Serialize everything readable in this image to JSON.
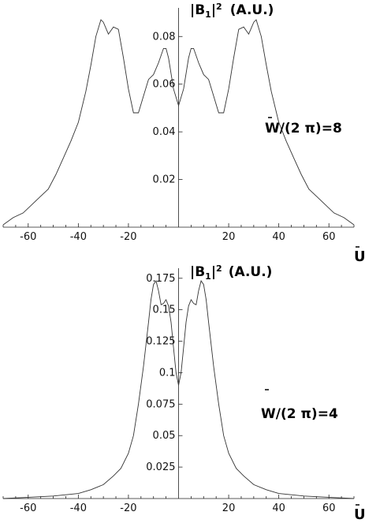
{
  "chart_data": [
    {
      "type": "line",
      "ylabel_main": "|B",
      "ylabel_sub": "1",
      "ylabel_rest": "|",
      "ylabel_sup": "2",
      "ylabel_units": "(A.U.)",
      "xlabel": "U",
      "annotation": "W/(2 π)=8",
      "xlim": [
        -70,
        70
      ],
      "ylim": [
        0,
        0.092
      ],
      "xticks": [
        -60,
        -40,
        -20,
        20,
        40,
        60
      ],
      "yticks": [
        0.02,
        0.04,
        0.06,
        0.08
      ],
      "xtick_labels": [
        "-60",
        "-40",
        "-20",
        "20",
        "40",
        "60"
      ],
      "ytick_labels": [
        "0.02",
        "0.04",
        "0.06",
        "0.08"
      ],
      "grid": false,
      "series": [
        {
          "x": [
            -70,
            -66,
            -62,
            -58,
            -55,
            -52,
            -49,
            -46,
            -43,
            -40,
            -37,
            -35,
            -33,
            -31,
            -30,
            -28,
            -26,
            -24,
            -22,
            -20,
            -18,
            -16,
            -14,
            -12,
            -10,
            -8,
            -6,
            -5,
            -4,
            -2,
            0,
            2,
            4,
            5,
            6,
            8,
            10,
            12,
            14,
            16,
            18,
            20,
            22,
            24,
            26,
            28,
            30,
            31,
            33,
            35,
            37,
            40,
            43,
            46,
            49,
            52,
            55,
            58,
            62,
            66,
            70
          ],
          "y": [
            0.001,
            0.004,
            0.006,
            0.01,
            0.013,
            0.016,
            0.022,
            0.029,
            0.036,
            0.044,
            0.057,
            0.068,
            0.08,
            0.087,
            0.086,
            0.081,
            0.084,
            0.083,
            0.071,
            0.058,
            0.048,
            0.048,
            0.055,
            0.062,
            0.064,
            0.069,
            0.075,
            0.075,
            0.071,
            0.058,
            0.051,
            0.058,
            0.071,
            0.075,
            0.075,
            0.069,
            0.064,
            0.062,
            0.055,
            0.048,
            0.048,
            0.058,
            0.071,
            0.083,
            0.084,
            0.081,
            0.086,
            0.087,
            0.08,
            0.068,
            0.057,
            0.044,
            0.036,
            0.029,
            0.022,
            0.016,
            0.013,
            0.01,
            0.006,
            0.004,
            0.001
          ]
        }
      ]
    },
    {
      "type": "line",
      "ylabel_main": "|B",
      "ylabel_sub": "1",
      "ylabel_rest": "|",
      "ylabel_sup": "2",
      "ylabel_units": "(A.U.)",
      "xlabel": "U",
      "annotation": "W/(2 π)=4",
      "xlim": [
        -70,
        70
      ],
      "ylim": [
        0,
        0.183
      ],
      "xticks": [
        -60,
        -40,
        -20,
        20,
        40,
        60
      ],
      "yticks": [
        0.025,
        0.05,
        0.075,
        0.1,
        0.125,
        0.15,
        0.175
      ],
      "xtick_labels": [
        "-60",
        "-40",
        "-20",
        "20",
        "40",
        "60"
      ],
      "ytick_labels": [
        "0.025",
        "0.05",
        "0.075",
        "0.1",
        "0.125",
        "0.15",
        "0.175"
      ],
      "grid": false,
      "series": [
        {
          "x": [
            -70,
            -60,
            -50,
            -40,
            -35,
            -30,
            -26,
            -23,
            -20,
            -18,
            -16,
            -14,
            -12,
            -11,
            -10,
            -9,
            -8,
            -7,
            -6,
            -5,
            -4,
            -3,
            -2,
            -1,
            0,
            1,
            2,
            3,
            4,
            5,
            6,
            7,
            8,
            9,
            10,
            11,
            12,
            14,
            16,
            18,
            20,
            23,
            26,
            30,
            35,
            40,
            50,
            60,
            70
          ],
          "y": [
            0.0,
            0.001,
            0.002,
            0.004,
            0.007,
            0.011,
            0.018,
            0.024,
            0.036,
            0.05,
            0.075,
            0.105,
            0.14,
            0.158,
            0.17,
            0.173,
            0.165,
            0.154,
            0.155,
            0.158,
            0.153,
            0.14,
            0.12,
            0.1,
            0.09,
            0.1,
            0.12,
            0.14,
            0.153,
            0.158,
            0.155,
            0.154,
            0.165,
            0.173,
            0.17,
            0.158,
            0.14,
            0.105,
            0.075,
            0.05,
            0.036,
            0.024,
            0.018,
            0.011,
            0.007,
            0.004,
            0.002,
            0.001,
            0.0
          ]
        }
      ]
    }
  ]
}
